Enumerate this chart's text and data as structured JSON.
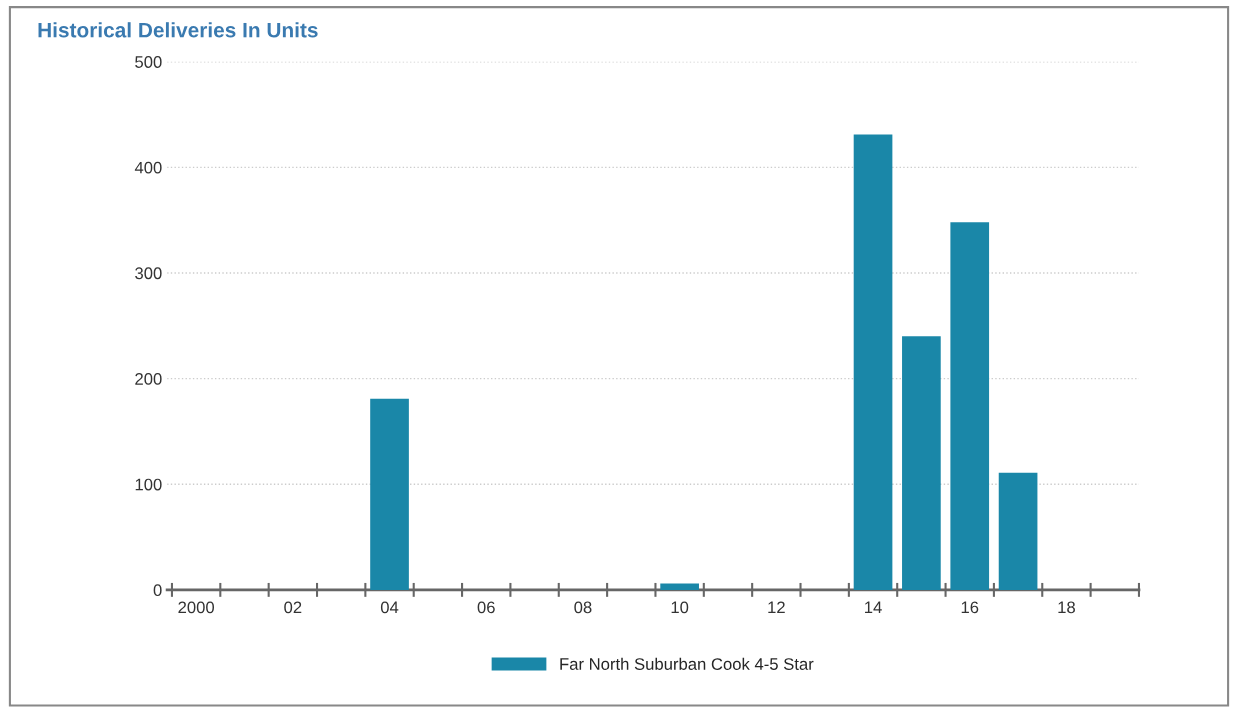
{
  "chart_data": {
    "type": "bar",
    "title": "Historical Deliveries In Units",
    "categories": [
      "2000",
      null,
      "02",
      null,
      "04",
      null,
      "06",
      null,
      "08",
      null,
      "10",
      null,
      "12",
      null,
      "14",
      null,
      "16",
      null,
      "18",
      null
    ],
    "series": [
      {
        "name": "Far North Suburban Cook 4-5 Star",
        "color": "#1a87a8",
        "values": [
          0,
          0,
          0,
          0,
          181,
          0,
          0,
          0,
          0,
          0,
          6,
          0,
          0,
          0,
          431,
          240,
          348,
          111,
          0,
          0
        ]
      }
    ],
    "ylim": [
      0,
      500
    ],
    "yticks": [
      0,
      100,
      200,
      300,
      400,
      500
    ],
    "grid": "y",
    "legend": "bottom"
  }
}
